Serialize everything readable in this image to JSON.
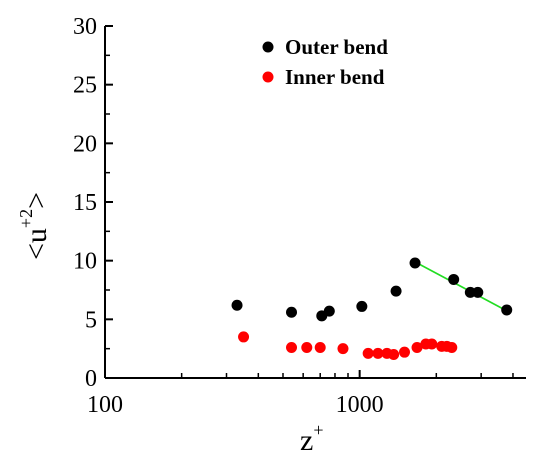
{
  "chart_data": {
    "type": "scatter",
    "xscale": "log",
    "xlim": [
      100,
      4500
    ],
    "ylim": [
      0,
      30
    ],
    "xticks": [
      100,
      1000
    ],
    "xtick_labels": [
      "100",
      "1000"
    ],
    "yticks": [
      0,
      5,
      10,
      15,
      20,
      25,
      30
    ],
    "ytick_labels": [
      "0",
      "5",
      "10",
      "15",
      "20",
      "25",
      "30"
    ],
    "xlabel": {
      "base": "z",
      "sup": "+"
    },
    "ylabel": {
      "base": "<u",
      "sup": "+2",
      "tail": ">"
    },
    "grid": false,
    "legend_position": "top-center",
    "series": [
      {
        "name": "Outer bend",
        "color": "#000000",
        "x": [
          330,
          540,
          710,
          760,
          1020,
          1390,
          1650,
          2340,
          2720,
          2910,
          3780
        ],
        "y": [
          6.2,
          5.6,
          5.3,
          5.7,
          6.1,
          7.4,
          9.8,
          8.4,
          7.3,
          7.3,
          5.8
        ]
      },
      {
        "name": "Inner bend",
        "color": "#ff0000",
        "x": [
          350,
          540,
          620,
          700,
          860,
          1080,
          1180,
          1280,
          1360,
          1500,
          1680,
          1820,
          1920,
          2100,
          2200,
          2300
        ],
        "y": [
          3.5,
          2.6,
          2.6,
          2.6,
          2.5,
          2.1,
          2.1,
          2.1,
          2.0,
          2.2,
          2.6,
          2.9,
          2.9,
          2.7,
          2.7,
          2.6
        ]
      }
    ],
    "fit_lines": [
      {
        "series": "Outer bend",
        "color": "#22dd22",
        "x": [
          1680,
          3800
        ],
        "y": [
          9.8,
          5.7
        ]
      },
      {
        "series": "Inner bend",
        "color": "#22dd22",
        "x": [
          1700,
          2320
        ],
        "y": [
          2.8,
          2.6
        ]
      }
    ]
  }
}
